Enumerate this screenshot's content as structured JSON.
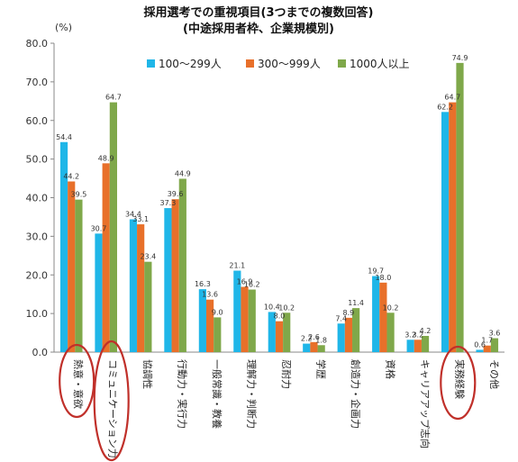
{
  "chart_data": {
    "type": "bar",
    "title": "採用選考での重視項目(3つまでの複数回答)",
    "subtitle": "(中途採用者枠、企業規模別)",
    "ylabel": "(%)",
    "ylim": [
      0,
      80
    ],
    "yticks": [
      "0.0",
      "10.0",
      "20.0",
      "30.0",
      "40.0",
      "50.0",
      "60.0",
      "70.0",
      "80.0"
    ],
    "grid": false,
    "legend_position": "top",
    "categories": [
      "熱意・意欲",
      "コミュニケーション力",
      "協調性",
      "行動力・実行力",
      "一般常識・教養",
      "理解力・判断力",
      "忍耐力",
      "学歴",
      "創造力・企画力",
      "資格",
      "キャリアアップ志向",
      "実務経験",
      "その他"
    ],
    "series": [
      {
        "name": "100〜299人",
        "color": "#1FB6E8",
        "values": [
          54.4,
          30.7,
          34.4,
          37.3,
          16.3,
          21.1,
          10.4,
          2.2,
          7.4,
          19.7,
          3.2,
          62.2,
          0.6
        ]
      },
      {
        "name": "300〜999人",
        "color": "#E8702A",
        "values": [
          44.2,
          48.9,
          33.1,
          39.6,
          13.6,
          16.9,
          8.0,
          2.6,
          8.9,
          18.0,
          3.2,
          64.7,
          1.7
        ]
      },
      {
        "name": "1000人以上",
        "color": "#7FA84A",
        "values": [
          39.5,
          64.7,
          23.4,
          44.9,
          9.0,
          16.2,
          10.2,
          1.8,
          11.4,
          10.2,
          4.2,
          74.9,
          3.6
        ]
      }
    ],
    "value_labels": [
      [
        "54.4",
        "30.7",
        "34.4",
        "37.3",
        "16.3",
        "21.1",
        "10.4",
        "2.2",
        "7.4",
        "19.7",
        "3.2",
        "62.2",
        "0.6"
      ],
      [
        "44.2",
        "48.9",
        "33.1",
        "39.6",
        "13.6",
        "16.9",
        "8.0",
        "2.6",
        "8.9",
        "18.0",
        "3.2",
        "64.7",
        "1.7"
      ],
      [
        "39.5",
        "64.7",
        "23.4",
        "44.9",
        "9.0",
        "16.2",
        "10.2",
        "1.8",
        "11.4",
        "10.2",
        "4.2",
        "74.9",
        "3.6"
      ]
    ],
    "highlighted_categories": [
      0,
      1,
      11
    ],
    "highlight_color": "#C0302A"
  }
}
